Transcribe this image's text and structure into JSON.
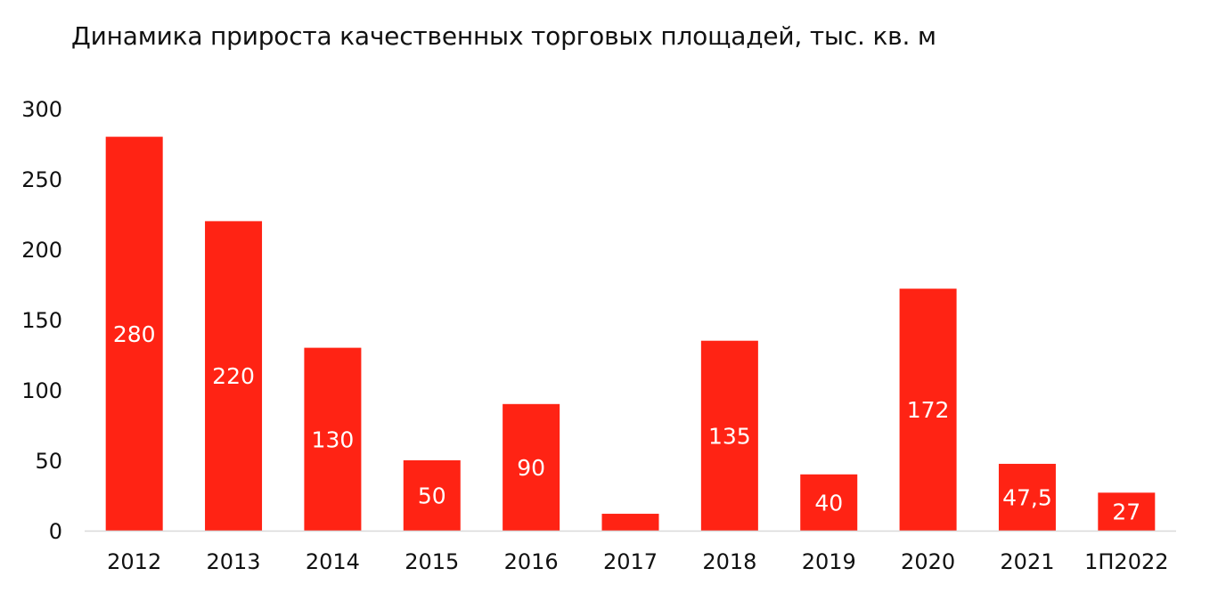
{
  "chart_data": {
    "type": "bar",
    "title": "Динамика прироста качественных торговых площадей, тыс. кв. м",
    "categories": [
      "2012",
      "2013",
      "2014",
      "2015",
      "2016",
      "2017",
      "2018",
      "2019",
      "2020",
      "2021",
      "1П2022"
    ],
    "values": [
      280,
      220,
      130,
      50,
      90,
      12,
      135,
      40,
      172,
      47.5,
      27
    ],
    "data_labels": [
      "280",
      "220",
      "130",
      "50",
      "90",
      "",
      "135",
      "40",
      "172",
      "47,5",
      "27"
    ],
    "ylim": [
      0,
      300
    ],
    "yticks": [
      0,
      50,
      100,
      150,
      200,
      250,
      300
    ],
    "xlabel": "",
    "ylabel": "",
    "grid": false,
    "legend": "none",
    "bar_color": "#ff2314",
    "axis_color": "#d9d9d9"
  }
}
